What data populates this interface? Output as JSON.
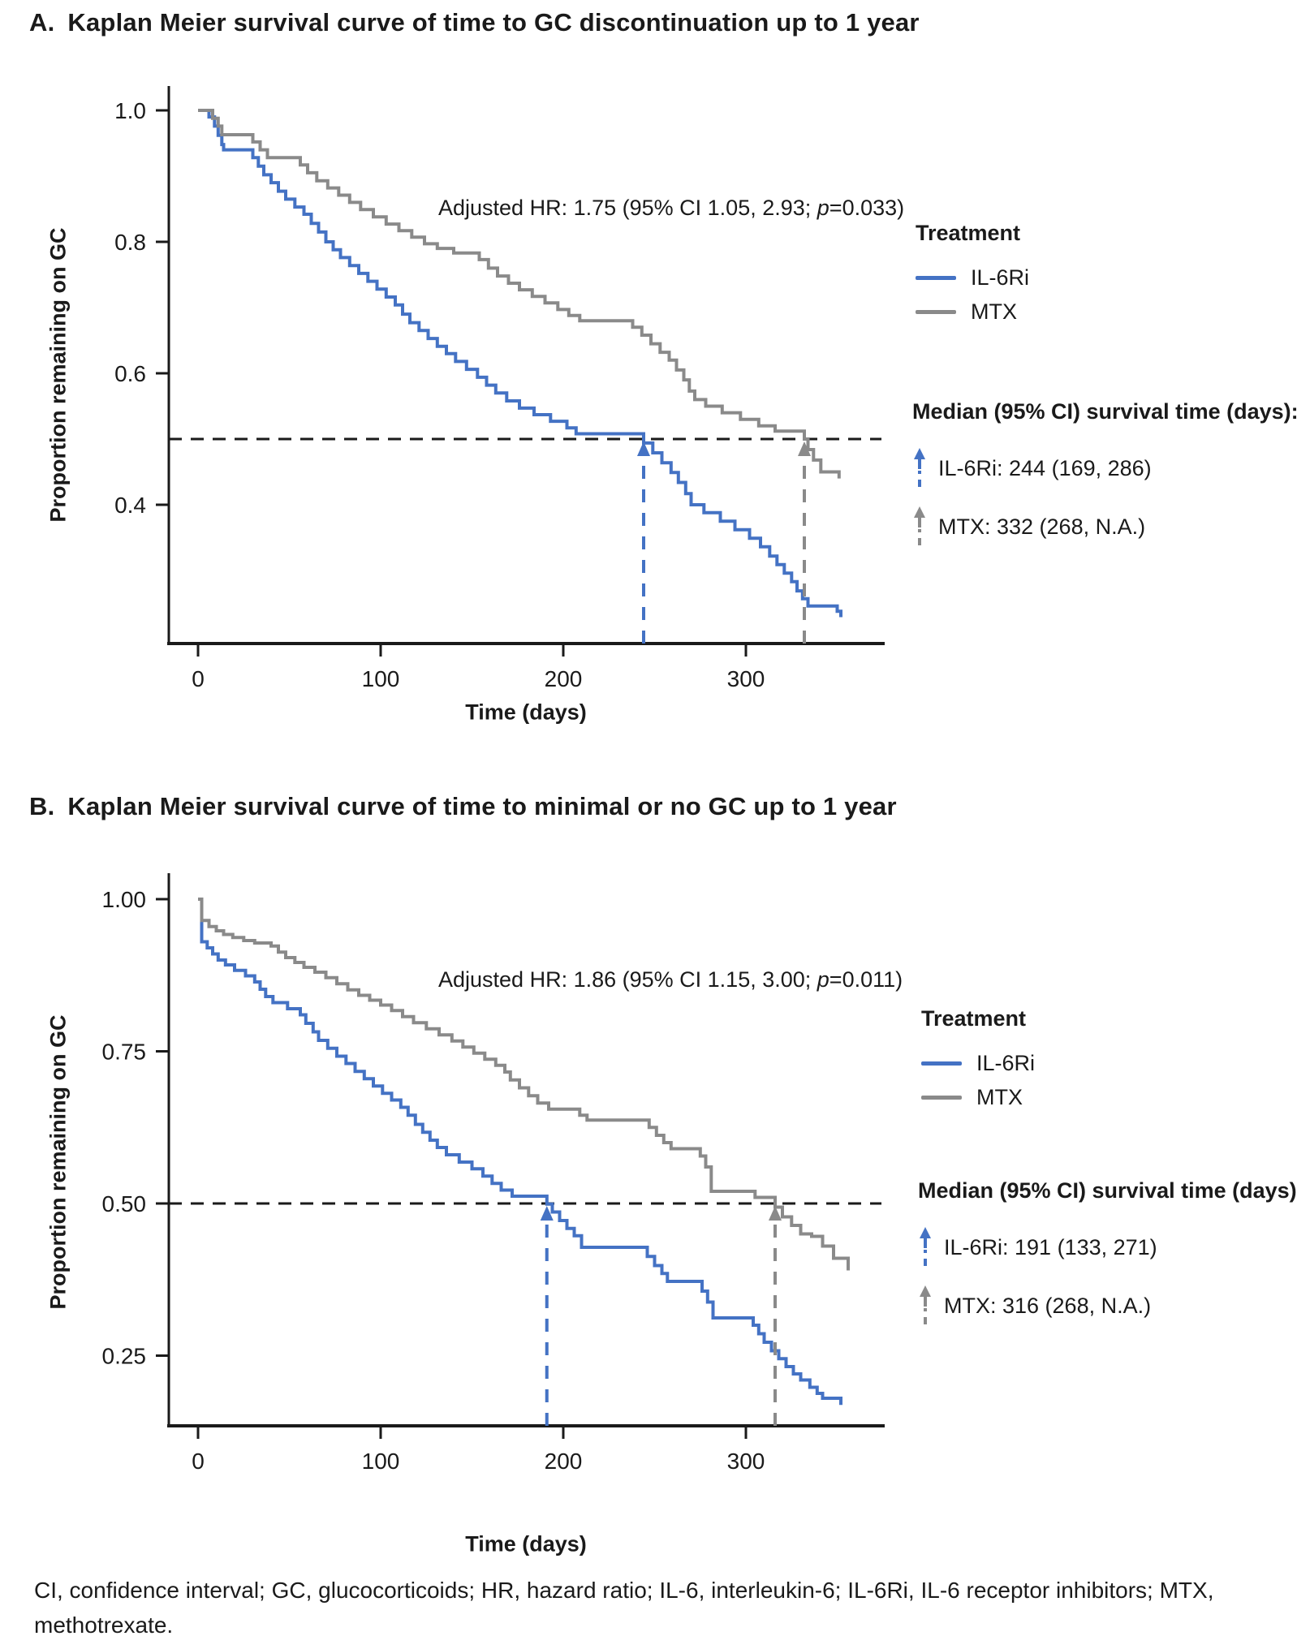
{
  "colors": {
    "il6ri_blue": "#4472C4",
    "mtx_gray": "#8A8A8A",
    "reference_dash_black": "#1A1A1A",
    "axis": "#1A1A1A",
    "text": "#1A1A1A"
  },
  "chart_data": [
    {
      "type": "line",
      "subtype": "kaplan-meier-step-survival",
      "panel_letter": "A.",
      "title": "Kaplan Meier survival curve of time to GC discontinuation up to 1 year",
      "annotation_full": "Adjusted HR: 1.75 (95% CI 1.05, 2.93; p=0.033)",
      "annotation_parts": {
        "before": "Adjusted HR: 1.75 (95% CI 1.05, 2.93; ",
        "p": "p",
        "after": "=0.033)"
      },
      "xlabel": "Time (days)",
      "ylabel": "Proportion remaining on GC",
      "xlim": [
        0,
        374
      ],
      "xticks": [
        0,
        100,
        200,
        300
      ],
      "ylim": [
        0.19,
        1.0
      ],
      "yticks": [
        1.0,
        0.8,
        0.6,
        0.4
      ],
      "ytick_labels": [
        "1.0",
        "0.8",
        "0.6",
        "0.4"
      ],
      "grid": false,
      "legend_position": "right",
      "reference_line_y": 0.5,
      "legend": {
        "title": "Treatment",
        "entries": [
          {
            "label": "IL-6Ri",
            "color": "#4472C4"
          },
          {
            "label": "MTX",
            "color": "#8A8A8A"
          }
        ]
      },
      "median_text": {
        "heading": "Median (95% CI) survival time (days):",
        "entries": [
          {
            "label": "IL-6Ri: 244 (169, 286)",
            "color": "#4472C4"
          },
          {
            "label": "MTX: 332 (268, N.A.)",
            "color": "#8A8A8A"
          }
        ]
      },
      "series": [
        {
          "name": "IL-6Ri",
          "color": "#4472C4",
          "median_day": 244,
          "median_ci": "(169, 286)",
          "points": [
            [
              0,
              1.0
            ],
            [
              6,
              0.99
            ],
            [
              9,
              0.976
            ],
            [
              11,
              0.962
            ],
            [
              13,
              0.948
            ],
            [
              14,
              0.94
            ],
            [
              30,
              0.928
            ],
            [
              33,
              0.915
            ],
            [
              36,
              0.902
            ],
            [
              40,
              0.89
            ],
            [
              44,
              0.877
            ],
            [
              48,
              0.865
            ],
            [
              53,
              0.853
            ],
            [
              58,
              0.842
            ],
            [
              62,
              0.828
            ],
            [
              66,
              0.815
            ],
            [
              70,
              0.8
            ],
            [
              74,
              0.788
            ],
            [
              78,
              0.776
            ],
            [
              83,
              0.764
            ],
            [
              88,
              0.752
            ],
            [
              93,
              0.74
            ],
            [
              98,
              0.728
            ],
            [
              103,
              0.716
            ],
            [
              108,
              0.704
            ],
            [
              112,
              0.69
            ],
            [
              116,
              0.677
            ],
            [
              121,
              0.665
            ],
            [
              126,
              0.653
            ],
            [
              131,
              0.641
            ],
            [
              136,
              0.63
            ],
            [
              141,
              0.618
            ],
            [
              147,
              0.606
            ],
            [
              153,
              0.594
            ],
            [
              158,
              0.582
            ],
            [
              163,
              0.57
            ],
            [
              169,
              0.558
            ],
            [
              176,
              0.547
            ],
            [
              184,
              0.537
            ],
            [
              193,
              0.527
            ],
            [
              202,
              0.517
            ],
            [
              207,
              0.508
            ],
            [
              244,
              0.494
            ],
            [
              249,
              0.479
            ],
            [
              254,
              0.464
            ],
            [
              259,
              0.449
            ],
            [
              263,
              0.434
            ],
            [
              267,
              0.417
            ],
            [
              270,
              0.4
            ],
            [
              277,
              0.388
            ],
            [
              286,
              0.375
            ],
            [
              294,
              0.362
            ],
            [
              302,
              0.349
            ],
            [
              308,
              0.336
            ],
            [
              313,
              0.322
            ],
            [
              317,
              0.309
            ],
            [
              321,
              0.296
            ],
            [
              325,
              0.283
            ],
            [
              328,
              0.269
            ],
            [
              331,
              0.257
            ],
            [
              334,
              0.246
            ],
            [
              350,
              0.238
            ],
            [
              352,
              0.229
            ]
          ]
        },
        {
          "name": "MTX",
          "color": "#8A8A8A",
          "median_day": 332,
          "median_ci": "(268, N.A.)",
          "points": [
            [
              0,
              1.0
            ],
            [
              8,
              0.988
            ],
            [
              11,
              0.976
            ],
            [
              13,
              0.963
            ],
            [
              30,
              0.952
            ],
            [
              34,
              0.94
            ],
            [
              38,
              0.928
            ],
            [
              56,
              0.917
            ],
            [
              60,
              0.905
            ],
            [
              65,
              0.893
            ],
            [
              71,
              0.882
            ],
            [
              77,
              0.871
            ],
            [
              83,
              0.86
            ],
            [
              89,
              0.849
            ],
            [
              96,
              0.838
            ],
            [
              103,
              0.827
            ],
            [
              110,
              0.817
            ],
            [
              117,
              0.807
            ],
            [
              124,
              0.797
            ],
            [
              131,
              0.79
            ],
            [
              140,
              0.783
            ],
            [
              154,
              0.773
            ],
            [
              159,
              0.76
            ],
            [
              164,
              0.748
            ],
            [
              170,
              0.737
            ],
            [
              176,
              0.727
            ],
            [
              183,
              0.717
            ],
            [
              190,
              0.707
            ],
            [
              197,
              0.697
            ],
            [
              203,
              0.688
            ],
            [
              209,
              0.68
            ],
            [
              238,
              0.67
            ],
            [
              243,
              0.658
            ],
            [
              248,
              0.645
            ],
            [
              253,
              0.632
            ],
            [
              258,
              0.62
            ],
            [
              262,
              0.605
            ],
            [
              266,
              0.59
            ],
            [
              269,
              0.573
            ],
            [
              272,
              0.56
            ],
            [
              278,
              0.55
            ],
            [
              287,
              0.54
            ],
            [
              297,
              0.53
            ],
            [
              307,
              0.52
            ],
            [
              316,
              0.512
            ],
            [
              332,
              0.5
            ],
            [
              334,
              0.484
            ],
            [
              337,
              0.468
            ],
            [
              341,
              0.45
            ],
            [
              351,
              0.44
            ]
          ]
        }
      ]
    },
    {
      "type": "line",
      "subtype": "kaplan-meier-step-survival",
      "panel_letter": "B.",
      "title": "Kaplan Meier survival curve of time to minimal or no GC up to 1 year",
      "annotation_full": "Adjusted HR: 1.86 (95% CI 1.15, 3.00; p=0.011)",
      "annotation_parts": {
        "before": "Adjusted HR: 1.86 (95% CI 1.15, 3.00; ",
        "p": "p",
        "after": "=0.011)"
      },
      "xlabel": "Time (days)",
      "ylabel": "Proportion remaining on GC",
      "xlim": [
        0,
        374
      ],
      "xticks": [
        0,
        100,
        200,
        300
      ],
      "ylim": [
        0.14,
        1.0
      ],
      "yticks": [
        1.0,
        0.75,
        0.5,
        0.25
      ],
      "ytick_labels": [
        "1.00",
        "0.75",
        "0.50",
        "0.25"
      ],
      "grid": false,
      "legend_position": "right",
      "reference_line_y": 0.5,
      "legend": {
        "title": "Treatment",
        "entries": [
          {
            "label": "IL-6Ri",
            "color": "#4472C4"
          },
          {
            "label": "MTX",
            "color": "#8A8A8A"
          }
        ]
      },
      "median_text": {
        "heading": "Median (95% CI) survival time (days):",
        "entries": [
          {
            "label": "IL-6Ri: 191 (133, 271)",
            "color": "#4472C4"
          },
          {
            "label": "MTX: 316 (268, N.A.)",
            "color": "#8A8A8A"
          }
        ]
      },
      "series": [
        {
          "name": "IL-6Ri",
          "color": "#4472C4",
          "median_day": 191,
          "median_ci": "(133, 271)",
          "points": [
            [
              0,
              1.0
            ],
            [
              2,
              0.93
            ],
            [
              5,
              0.92
            ],
            [
              8,
              0.91
            ],
            [
              11,
              0.9
            ],
            [
              15,
              0.892
            ],
            [
              20,
              0.883
            ],
            [
              26,
              0.874
            ],
            [
              31,
              0.864
            ],
            [
              34,
              0.852
            ],
            [
              37,
              0.84
            ],
            [
              41,
              0.83
            ],
            [
              49,
              0.82
            ],
            [
              56,
              0.81
            ],
            [
              59,
              0.796
            ],
            [
              63,
              0.782
            ],
            [
              66,
              0.768
            ],
            [
              71,
              0.755
            ],
            [
              76,
              0.742
            ],
            [
              81,
              0.73
            ],
            [
              86,
              0.717
            ],
            [
              91,
              0.705
            ],
            [
              96,
              0.693
            ],
            [
              101,
              0.681
            ],
            [
              106,
              0.67
            ],
            [
              111,
              0.658
            ],
            [
              115,
              0.645
            ],
            [
              119,
              0.63
            ],
            [
              123,
              0.617
            ],
            [
              127,
              0.604
            ],
            [
              131,
              0.592
            ],
            [
              136,
              0.58
            ],
            [
              143,
              0.568
            ],
            [
              150,
              0.557
            ],
            [
              156,
              0.545
            ],
            [
              161,
              0.533
            ],
            [
              166,
              0.522
            ],
            [
              172,
              0.512
            ],
            [
              191,
              0.499
            ],
            [
              194,
              0.486
            ],
            [
              198,
              0.472
            ],
            [
              202,
              0.459
            ],
            [
              206,
              0.447
            ],
            [
              210,
              0.428
            ],
            [
              246,
              0.413
            ],
            [
              250,
              0.398
            ],
            [
              254,
              0.385
            ],
            [
              257,
              0.372
            ],
            [
              276,
              0.356
            ],
            [
              279,
              0.338
            ],
            [
              282,
              0.312
            ],
            [
              304,
              0.3
            ],
            [
              307,
              0.286
            ],
            [
              310,
              0.272
            ],
            [
              314,
              0.258
            ],
            [
              318,
              0.245
            ],
            [
              322,
              0.232
            ],
            [
              326,
              0.22
            ],
            [
              330,
              0.21
            ],
            [
              335,
              0.198
            ],
            [
              339,
              0.188
            ],
            [
              342,
              0.18
            ],
            [
              352,
              0.169
            ]
          ]
        },
        {
          "name": "MTX",
          "color": "#8A8A8A",
          "median_day": 316,
          "median_ci": "(268, N.A.)",
          "points": [
            [
              0,
              1.0
            ],
            [
              2,
              0.965
            ],
            [
              6,
              0.955
            ],
            [
              10,
              0.948
            ],
            [
              14,
              0.942
            ],
            [
              19,
              0.937
            ],
            [
              25,
              0.932
            ],
            [
              31,
              0.928
            ],
            [
              40,
              0.923
            ],
            [
              44,
              0.913
            ],
            [
              48,
              0.904
            ],
            [
              53,
              0.896
            ],
            [
              58,
              0.888
            ],
            [
              64,
              0.88
            ],
            [
              70,
              0.871
            ],
            [
              76,
              0.861
            ],
            [
              82,
              0.851
            ],
            [
              88,
              0.842
            ],
            [
              94,
              0.834
            ],
            [
              100,
              0.826
            ],
            [
              106,
              0.817
            ],
            [
              112,
              0.807
            ],
            [
              118,
              0.797
            ],
            [
              125,
              0.787
            ],
            [
              132,
              0.777
            ],
            [
              139,
              0.767
            ],
            [
              145,
              0.757
            ],
            [
              151,
              0.747
            ],
            [
              157,
              0.737
            ],
            [
              163,
              0.727
            ],
            [
              168,
              0.716
            ],
            [
              171,
              0.703
            ],
            [
              176,
              0.69
            ],
            [
              181,
              0.677
            ],
            [
              186,
              0.665
            ],
            [
              192,
              0.655
            ],
            [
              209,
              0.645
            ],
            [
              213,
              0.637
            ],
            [
              247,
              0.625
            ],
            [
              251,
              0.612
            ],
            [
              255,
              0.6
            ],
            [
              259,
              0.59
            ],
            [
              275,
              0.578
            ],
            [
              278,
              0.56
            ],
            [
              281,
              0.52
            ],
            [
              305,
              0.51
            ],
            [
              316,
              0.494
            ],
            [
              320,
              0.478
            ],
            [
              325,
              0.464
            ],
            [
              330,
              0.45
            ],
            [
              336,
              0.446
            ],
            [
              342,
              0.43
            ],
            [
              348,
              0.41
            ],
            [
              356,
              0.39
            ]
          ]
        }
      ]
    }
  ],
  "footnote": "CI, confidence interval; GC, glucocorticoids; HR, hazard ratio; IL-6, interleukin-6; IL-6Ri, IL-6 receptor inhibitors; MTX, methotrexate."
}
